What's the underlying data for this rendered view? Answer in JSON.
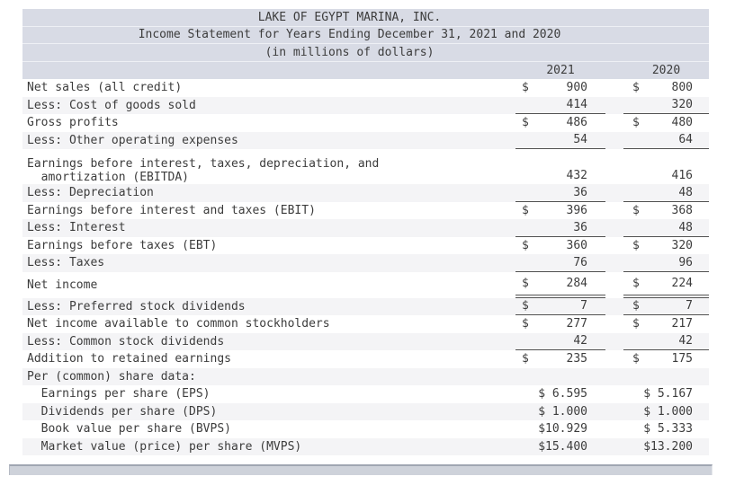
{
  "header": {
    "title": "LAKE OF EGYPT MARINA, INC.",
    "subtitle": "Income Statement for Years Ending December 31, 2021 and 2020",
    "units": "(in millions of dollars)",
    "col_year_1": "2021",
    "col_year_2": "2020"
  },
  "colors": {
    "header_bg": "#d8dbe5",
    "row_shade": "#f4f4f6",
    "text": "#3c3c3c",
    "rule_line": "#515151",
    "scrollbar_fill": "#ced2da",
    "scrollbar_border": "#a0a6b2"
  },
  "table": {
    "rows": [
      {
        "label": "Net sales (all credit)",
        "dollar": true,
        "v2021": "900",
        "v2020": "800",
        "underline": "none"
      },
      {
        "label": "Less: Cost of goods sold",
        "dollar": false,
        "v2021": "414",
        "v2020": "320",
        "underline": "single"
      },
      {
        "label": "Gross profits",
        "dollar": true,
        "v2021": "486",
        "v2020": "480",
        "underline": "none"
      },
      {
        "label": "Less: Other operating expenses",
        "dollar": false,
        "v2021": "54",
        "v2020": "64",
        "underline": "single"
      },
      {
        "label": "Earnings before interest, taxes, depreciation, and",
        "label2": "  amortization (EBITDA)",
        "dollar": false,
        "v2021": "432",
        "v2020": "416",
        "underline": "none"
      },
      {
        "label": "Less: Depreciation",
        "dollar": false,
        "v2021": "36",
        "v2020": "48",
        "underline": "single"
      },
      {
        "label": "Earnings before interest and taxes (EBIT)",
        "dollar": true,
        "v2021": "396",
        "v2020": "368",
        "underline": "none"
      },
      {
        "label": "Less: Interest",
        "dollar": false,
        "v2021": "36",
        "v2020": "48",
        "underline": "single"
      },
      {
        "label": "Earnings before taxes (EBT)",
        "dollar": true,
        "v2021": "360",
        "v2020": "320",
        "underline": "none"
      },
      {
        "label": "Less: Taxes",
        "dollar": false,
        "v2021": "76",
        "v2020": "96",
        "underline": "single"
      },
      {
        "label": "Net income",
        "dollar": true,
        "v2021": "284",
        "v2020": "224",
        "underline": "double",
        "tall": true
      },
      {
        "label": "Less: Preferred stock dividends",
        "dollar": true,
        "v2021": "7",
        "v2020": "7",
        "underline": "single"
      },
      {
        "label": "Net income available to common stockholders",
        "dollar": true,
        "v2021": "277",
        "v2020": "217",
        "underline": "none"
      },
      {
        "label": "Less: Common stock dividends",
        "dollar": false,
        "v2021": "42",
        "v2020": "42",
        "underline": "single"
      },
      {
        "label": "Addition to retained earnings",
        "dollar": true,
        "v2021": "235",
        "v2020": "175",
        "underline": "none"
      },
      {
        "label": "Per (common) share data:",
        "underline": "none"
      },
      {
        "label": "  Earnings per share (EPS)",
        "pershare": true,
        "v2021": "$ 6.595",
        "v2020": "$ 5.167",
        "underline": "none"
      },
      {
        "label": "  Dividends per share (DPS)",
        "pershare": true,
        "v2021": "$ 1.000",
        "v2020": "$ 1.000",
        "underline": "none"
      },
      {
        "label": "  Book value per share (BVPS)",
        "pershare": true,
        "v2021": "$10.929",
        "v2020": "$ 5.333",
        "underline": "none"
      },
      {
        "label": "  Market value (price) per share (MVPS)",
        "pershare": true,
        "v2021": "$15.400",
        "v2020": "$13.200",
        "underline": "none"
      }
    ]
  },
  "currency_symbol": "$"
}
